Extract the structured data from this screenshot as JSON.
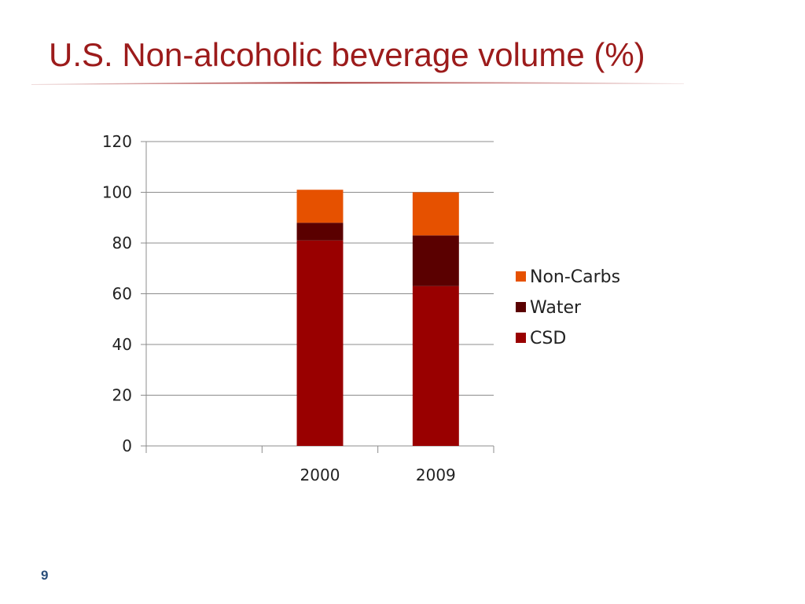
{
  "slide": {
    "title": "U.S. Non-alcoholic beverage volume (%)",
    "page_number": "9"
  },
  "chart_data": {
    "type": "bar",
    "stacked": true,
    "categories": [
      "",
      "2000",
      "2009"
    ],
    "series": [
      {
        "name": "CSD",
        "values": [
          null,
          81,
          63
        ],
        "color": "#990000"
      },
      {
        "name": "Water",
        "values": [
          null,
          7,
          20
        ],
        "color": "#5a0000"
      },
      {
        "name": "Non-Carbs",
        "values": [
          null,
          13,
          17
        ],
        "color": "#e65100"
      }
    ],
    "ylim": [
      0,
      120
    ],
    "yticks": [
      0,
      20,
      40,
      60,
      80,
      100,
      120
    ],
    "grid": true,
    "legend": "right",
    "title": "",
    "xlabel": "",
    "ylabel": ""
  }
}
